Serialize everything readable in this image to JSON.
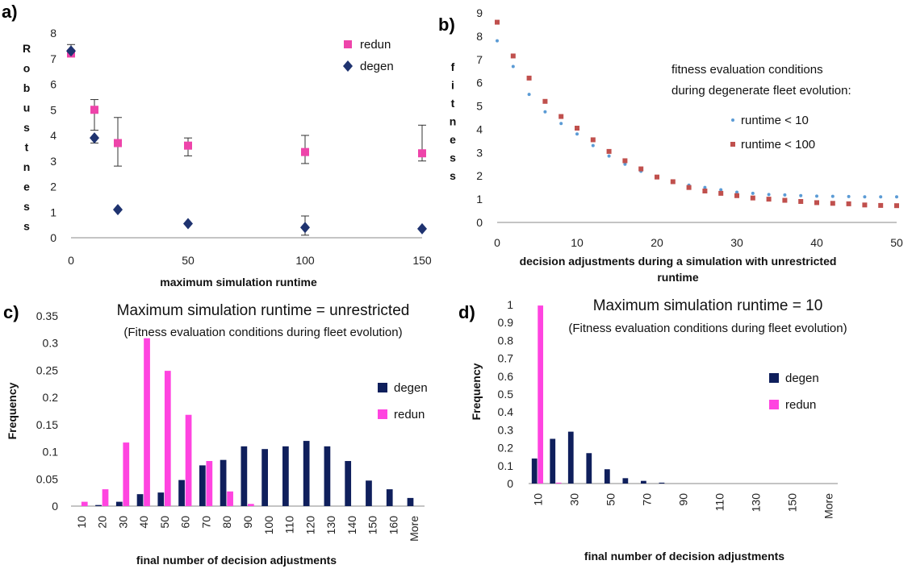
{
  "chart_data": [
    {
      "id": "a",
      "type": "scatter",
      "panel_label": "a)",
      "xlabel": "maximum simulation runtime",
      "ylabel": "Robustness",
      "xlim": [
        0,
        150
      ],
      "ylim": [
        0,
        8
      ],
      "xticks": [
        0,
        50,
        100,
        150
      ],
      "yticks": [
        0,
        1,
        2,
        3,
        4,
        5,
        6,
        7,
        8
      ],
      "legend_position": "top-right",
      "series": [
        {
          "name": "redun",
          "color": "#ee44aa",
          "marker": "square",
          "points": [
            {
              "x": 0,
              "y": 7.2,
              "err_lo": 0,
              "err_hi": 0
            },
            {
              "x": 10,
              "y": 5.0,
              "err_lo": 0.8,
              "err_hi": 0.4
            },
            {
              "x": 20,
              "y": 3.7,
              "err_lo": 0.9,
              "err_hi": 1.0
            },
            {
              "x": 50,
              "y": 3.6,
              "err_lo": 0.4,
              "err_hi": 0.3
            },
            {
              "x": 100,
              "y": 3.35,
              "err_lo": 0.45,
              "err_hi": 0.65
            },
            {
              "x": 150,
              "y": 3.3,
              "err_lo": 0.3,
              "err_hi": 1.1
            }
          ]
        },
        {
          "name": "degen",
          "color": "#1f3370",
          "marker": "diamond",
          "points": [
            {
              "x": 0,
              "y": 7.3,
              "err_lo": 0,
              "err_hi": 0.25
            },
            {
              "x": 10,
              "y": 3.9,
              "err_lo": 0.2,
              "err_hi": 0
            },
            {
              "x": 20,
              "y": 1.1,
              "err_lo": 0,
              "err_hi": 0
            },
            {
              "x": 50,
              "y": 0.55,
              "err_lo": 0,
              "err_hi": 0
            },
            {
              "x": 100,
              "y": 0.4,
              "err_lo": 0.3,
              "err_hi": 0.45
            },
            {
              "x": 150,
              "y": 0.35,
              "err_lo": 0,
              "err_hi": 0
            }
          ]
        }
      ]
    },
    {
      "id": "b",
      "type": "scatter",
      "panel_label": "b)",
      "xlabel": "decision adjustments during a simulation with unrestricted runtime",
      "ylabel": "fitness",
      "xlim": [
        0,
        50
      ],
      "ylim": [
        0,
        9
      ],
      "xticks": [
        0,
        10,
        20,
        30,
        40,
        50
      ],
      "yticks": [
        0,
        1,
        2,
        3,
        4,
        5,
        6,
        7,
        8,
        9
      ],
      "legend_title": [
        "fitness evaluation conditions",
        "during degenerate fleet evolution:"
      ],
      "legend_position": "right",
      "series": [
        {
          "name": "runtime < 10",
          "color": "#5b9bd5",
          "marker": "dot",
          "x": [
            0,
            2,
            4,
            6,
            8,
            10,
            12,
            14,
            16,
            18,
            20,
            22,
            24,
            26,
            28,
            30,
            32,
            34,
            36,
            38,
            40,
            42,
            44,
            46,
            48,
            50
          ],
          "y": [
            7.8,
            6.7,
            5.5,
            4.75,
            4.25,
            3.8,
            3.3,
            2.85,
            2.5,
            2.2,
            1.95,
            1.75,
            1.6,
            1.5,
            1.4,
            1.3,
            1.25,
            1.2,
            1.18,
            1.15,
            1.13,
            1.12,
            1.11,
            1.1,
            1.1,
            1.1
          ]
        },
        {
          "name": "runtime < 100",
          "color": "#c0504d",
          "marker": "square",
          "x": [
            0,
            2,
            4,
            6,
            8,
            10,
            12,
            14,
            16,
            18,
            20,
            22,
            24,
            26,
            28,
            30,
            32,
            34,
            36,
            38,
            40,
            42,
            44,
            46,
            48,
            50
          ],
          "y": [
            8.6,
            7.15,
            6.2,
            5.2,
            4.55,
            4.05,
            3.55,
            3.05,
            2.65,
            2.3,
            1.95,
            1.75,
            1.5,
            1.35,
            1.25,
            1.15,
            1.05,
            1.0,
            0.95,
            0.9,
            0.85,
            0.82,
            0.8,
            0.75,
            0.73,
            0.72
          ]
        }
      ]
    },
    {
      "id": "c",
      "type": "bar",
      "panel_label": "c)",
      "title": "Maximum simulation runtime = unrestricted",
      "subtitle": "(Fitness evaluation conditions during fleet evolution)",
      "xlabel": "final number of decision adjustments",
      "ylabel": "Frequency",
      "ylim": [
        0,
        0.35
      ],
      "yticks": [
        "0",
        "0.05",
        "0.1",
        "0.15",
        "0.2",
        "0.25",
        "0.3",
        "0.35"
      ],
      "legend_position": "right",
      "categories": [
        "10",
        "20",
        "30",
        "40",
        "50",
        "60",
        "70",
        "80",
        "90",
        "100",
        "110",
        "120",
        "130",
        "140",
        "150",
        "160",
        "More"
      ],
      "series": [
        {
          "name": "degen",
          "color": "#0f1f5c",
          "values": [
            0,
            0.002,
            0.008,
            0.022,
            0.025,
            0.048,
            0.075,
            0.085,
            0.11,
            0.105,
            0.11,
            0.12,
            0.11,
            0.083,
            0.047,
            0.031,
            0.015
          ]
        },
        {
          "name": "redun",
          "color": "#ff44e0",
          "values": [
            0.008,
            0.031,
            0.117,
            0.309,
            0.249,
            0.168,
            0.083,
            0.027,
            0.004,
            0,
            0,
            0,
            0,
            0,
            0,
            0,
            0
          ]
        }
      ]
    },
    {
      "id": "d",
      "type": "bar",
      "panel_label": "d)",
      "title": "Maximum simulation runtime = 10",
      "subtitle": "(Fitness evaluation conditions during fleet evolution)",
      "xlabel": "final number of decision adjustments",
      "ylabel": "Frequency",
      "ylim": [
        0,
        1
      ],
      "yticks": [
        "0",
        "0.1",
        "0.2",
        "0.3",
        "0.4",
        "0.5",
        "0.6",
        "0.7",
        "0.8",
        "0.9",
        "1"
      ],
      "legend_position": "right",
      "categories": [
        "10",
        "20",
        "30",
        "40",
        "50",
        "60",
        "70",
        "80",
        "90",
        "100",
        "110",
        "120",
        "130",
        "140",
        "150",
        "160",
        "More"
      ],
      "tick_labels_shown": [
        "10",
        "30",
        "50",
        "70",
        "90",
        "110",
        "130",
        "150",
        "More"
      ],
      "series": [
        {
          "name": "degen",
          "color": "#0f1f5c",
          "values": [
            0.14,
            0.25,
            0.29,
            0.17,
            0.08,
            0.03,
            0.015,
            0.005,
            0,
            0,
            0,
            0,
            0,
            0,
            0,
            0,
            0
          ]
        },
        {
          "name": "redun",
          "color": "#ff44e0",
          "values": [
            0.995,
            0.005,
            0,
            0,
            0,
            0,
            0,
            0,
            0,
            0,
            0,
            0,
            0,
            0,
            0,
            0,
            0
          ]
        }
      ]
    }
  ]
}
